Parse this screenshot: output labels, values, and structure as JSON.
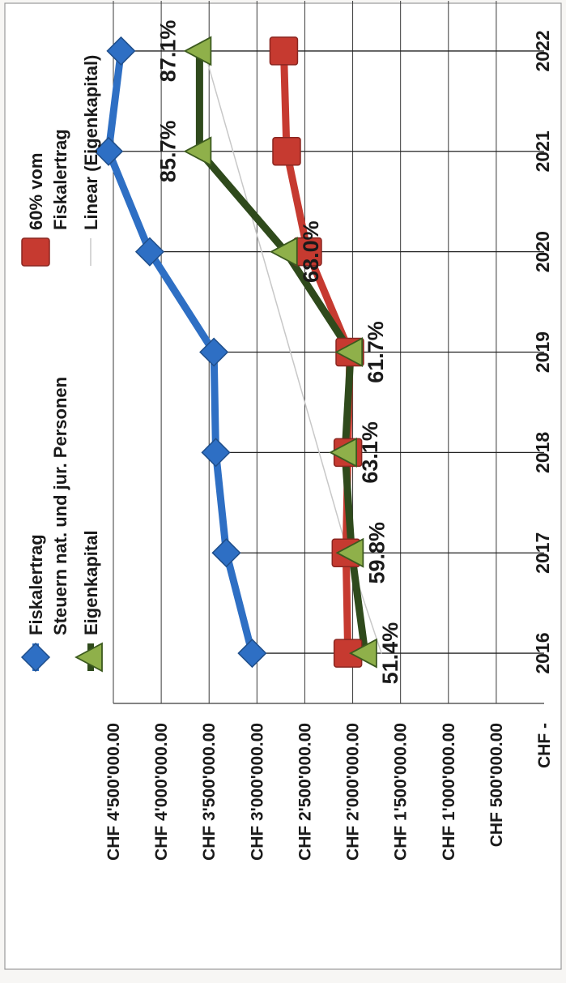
{
  "chart_data": {
    "type": "line",
    "title": "",
    "xlabel": "",
    "ylabel": "",
    "categories": [
      "2016",
      "2017",
      "2018",
      "2019",
      "2020",
      "2021",
      "2022"
    ],
    "ylim": [
      0,
      4500000
    ],
    "y_ticks": [
      {
        "value": 0,
        "label": "CHF -"
      },
      {
        "value": 500000,
        "label": "CHF 500'000.00"
      },
      {
        "value": 1000000,
        "label": "CHF 1'000'000.00"
      },
      {
        "value": 1500000,
        "label": "CHF 1'500'000.00"
      },
      {
        "value": 2000000,
        "label": "CHF 2'000'000.00"
      },
      {
        "value": 2500000,
        "label": "CHF 2'500'000.00"
      },
      {
        "value": 3000000,
        "label": "CHF 3'000'000.00"
      },
      {
        "value": 3500000,
        "label": "CHF 3'500'000.00"
      },
      {
        "value": 4000000,
        "label": "CHF 4'000'000.00"
      },
      {
        "value": 4500000,
        "label": "CHF 4'500'000.00"
      }
    ],
    "grid": true,
    "legend_position": "top",
    "series": [
      {
        "key": "fiskal",
        "name_lines": [
          "Fiskalertrag",
          "Steuern nat. und jur. Personen"
        ],
        "color": "#2e6fc4",
        "marker": "diamond",
        "values": [
          3050000,
          3320000,
          3430000,
          3450000,
          4120000,
          4550000,
          4420000
        ]
      },
      {
        "key": "sixty",
        "name_lines": [
          "60% vom",
          "Fiskalertrag"
        ],
        "color": "#c63a30",
        "marker": "square",
        "values": [
          2050000,
          2070000,
          2050000,
          2030000,
          2470000,
          2690000,
          2720000
        ]
      },
      {
        "key": "eigen",
        "name_lines": [
          "Eigenkapital"
        ],
        "color": "#2f4a1c",
        "marker": "triangle",
        "values": [
          1870000,
          2010000,
          2080000,
          2020000,
          2700000,
          3600000,
          3600000
        ]
      },
      {
        "key": "linear",
        "name_lines": [
          "Linear (Eigenkapital)"
        ],
        "color": "#c8c8c8",
        "marker": "none",
        "values": [
          1700000,
          2050000,
          2350000,
          2650000,
          2950000,
          3250000,
          3550000
        ]
      }
    ],
    "data_labels": [
      {
        "category": "2016",
        "text": "51.4%"
      },
      {
        "category": "2017",
        "text": "59.8%"
      },
      {
        "category": "2018",
        "text": "63.1%"
      },
      {
        "category": "2019",
        "text": "61.7%"
      },
      {
        "category": "2020",
        "text": "68.0%"
      },
      {
        "category": "2021",
        "text": "85.7%"
      },
      {
        "category": "2022",
        "text": "87.1%"
      }
    ]
  }
}
